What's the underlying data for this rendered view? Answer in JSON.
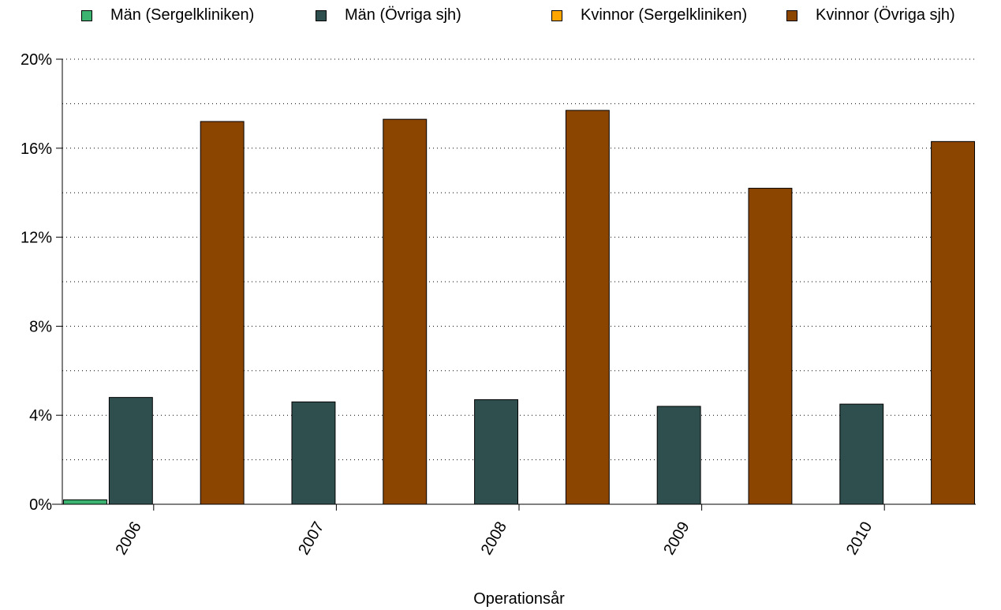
{
  "chart_data": {
    "type": "bar",
    "categories": [
      "2006",
      "2007",
      "2008",
      "2009",
      "2010"
    ],
    "series": [
      {
        "name": "Män (Sergelkliniken)",
        "color": "#3cb371",
        "values": [
          0.2,
          0.0,
          0.0,
          0.0,
          0.0
        ]
      },
      {
        "name": "Män (Övriga sjh)",
        "color": "#2f4f4f",
        "values": [
          4.8,
          4.6,
          4.7,
          4.4,
          4.5
        ]
      },
      {
        "name": "Kvinnor (Sergelkliniken)",
        "color": "#ffa500",
        "values": [
          0.0,
          0.0,
          0.0,
          0.0,
          0.0
        ]
      },
      {
        "name": "Kvinnor (Övriga sjh)",
        "color": "#8b4500",
        "values": [
          17.2,
          17.3,
          17.7,
          14.2,
          16.3
        ]
      }
    ],
    "xlabel": "Operationsår",
    "ylabel": "",
    "ylim": [
      0,
      20
    ],
    "yticks": [
      0,
      4,
      8,
      12,
      16,
      20
    ],
    "ytick_labels": [
      "0%",
      "4%",
      "8%",
      "12%",
      "16%",
      "20%"
    ],
    "grid": true,
    "legend_position": "top"
  }
}
